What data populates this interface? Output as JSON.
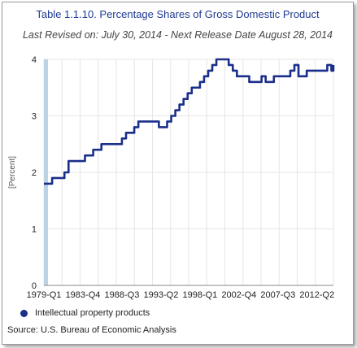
{
  "chart_data": {
    "type": "line",
    "title": "Table 1.1.10. Percentage Shares of Gross Domestic Product",
    "subtitle": "Last Revised on: July 30, 2014 - Next Release Date August 28, 2014",
    "ylabel": "[Percent]",
    "xlabel": "",
    "ylim": [
      0,
      4
    ],
    "yticks": [
      "0",
      "1",
      "2",
      "3",
      "4"
    ],
    "xticks": [
      "1979-Q1",
      "1983-Q4",
      "1988-Q3",
      "1993-Q2",
      "1998-Q1",
      "2002-Q4",
      "2007-Q3",
      "2012-Q2"
    ],
    "grid": true,
    "legend_position": "bottom-left",
    "series": [
      {
        "name": "Intellectual property products",
        "color": "#1a2f8a",
        "x": [
          1979.0,
          1979.5,
          1980.0,
          1980.5,
          1981.0,
          1981.5,
          1982.0,
          1983.0,
          1984.0,
          1985.0,
          1986.0,
          1987.0,
          1988.0,
          1988.5,
          1989.0,
          1989.5,
          1990.0,
          1990.5,
          1991.0,
          1992.0,
          1993.0,
          1993.5,
          1994.0,
          1994.5,
          1995.0,
          1995.5,
          1996.0,
          1996.5,
          1997.0,
          1997.5,
          1998.0,
          1998.5,
          1999.0,
          1999.5,
          2000.0,
          2000.5,
          2001.0,
          2001.5,
          2002.0,
          2002.5,
          2003.0,
          2004.0,
          2005.0,
          2005.5,
          2006.0,
          2007.0,
          2008.0,
          2009.0,
          2009.25,
          2009.5,
          2010.0,
          2011.0,
          2012.0,
          2012.5,
          2013.0,
          2013.5,
          2014.0,
          2014.25
        ],
        "values": [
          1.8,
          1.8,
          1.9,
          1.9,
          1.9,
          2.0,
          2.2,
          2.2,
          2.3,
          2.4,
          2.5,
          2.5,
          2.5,
          2.6,
          2.7,
          2.7,
          2.8,
          2.9,
          2.9,
          2.9,
          2.8,
          2.8,
          2.9,
          3.0,
          3.1,
          3.2,
          3.3,
          3.4,
          3.5,
          3.5,
          3.6,
          3.7,
          3.8,
          3.9,
          4.0,
          4.0,
          4.0,
          3.9,
          3.8,
          3.7,
          3.7,
          3.6,
          3.6,
          3.7,
          3.6,
          3.7,
          3.7,
          3.8,
          3.8,
          3.9,
          3.7,
          3.8,
          3.8,
          3.8,
          3.8,
          3.9,
          3.8,
          3.9
        ]
      }
    ],
    "x_range": [
      1979.0,
      2014.25
    ]
  },
  "source_text": "Source: U.S. Bureau of Economic Analysis"
}
